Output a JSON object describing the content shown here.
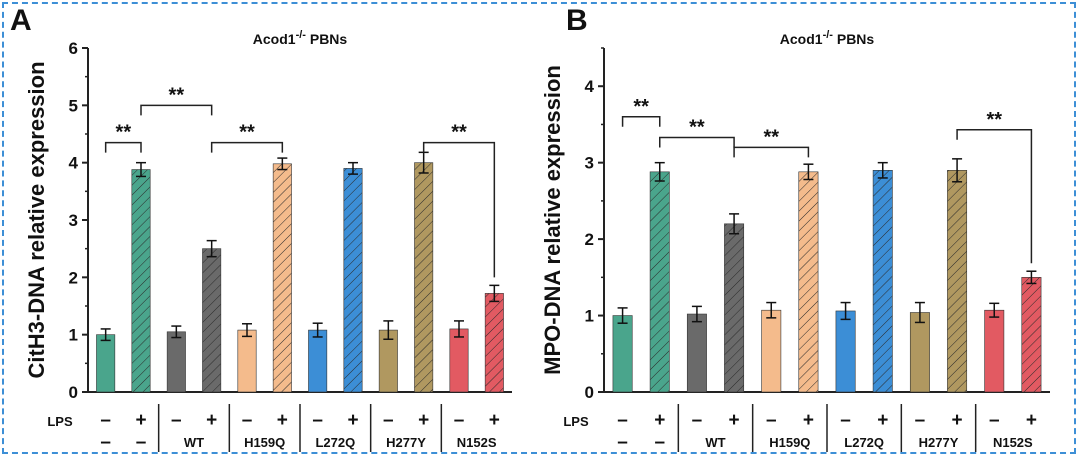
{
  "chart_data": [
    {
      "type": "bar",
      "panel": "A",
      "title_main": "Acod1",
      "title_sup": "-/-",
      "title_rest": " PBNs",
      "ylabel": "CitH3-DNA relative expression",
      "ylim": [
        0,
        6
      ],
      "yticks": [
        "0",
        "1",
        "2",
        "3",
        "4",
        "5",
        "6"
      ],
      "groups": [
        "–",
        "WT",
        "H159Q",
        "L272Q",
        "H277Y",
        "N152S"
      ],
      "lps_label": "LPS",
      "lps_signs": [
        "–",
        "+"
      ],
      "bars": [
        {
          "group": 0,
          "lps": "–",
          "value": 1.0,
          "err": 0.1,
          "color": "#4aa58c",
          "hatch": false
        },
        {
          "group": 0,
          "lps": "+",
          "value": 3.88,
          "err": 0.12,
          "color": "#4aa58c",
          "hatch": true
        },
        {
          "group": 1,
          "lps": "–",
          "value": 1.05,
          "err": 0.1,
          "color": "#6a6a6a",
          "hatch": false
        },
        {
          "group": 1,
          "lps": "+",
          "value": 2.5,
          "err": 0.14,
          "color": "#6a6a6a",
          "hatch": true
        },
        {
          "group": 2,
          "lps": "–",
          "value": 1.08,
          "err": 0.11,
          "color": "#f4bb8c",
          "hatch": false
        },
        {
          "group": 2,
          "lps": "+",
          "value": 3.98,
          "err": 0.1,
          "color": "#f4bb8c",
          "hatch": true
        },
        {
          "group": 3,
          "lps": "–",
          "value": 1.08,
          "err": 0.12,
          "color": "#3c8ed6",
          "hatch": false
        },
        {
          "group": 3,
          "lps": "+",
          "value": 3.9,
          "err": 0.1,
          "color": "#3c8ed6",
          "hatch": true
        },
        {
          "group": 4,
          "lps": "–",
          "value": 1.08,
          "err": 0.16,
          "color": "#b09860",
          "hatch": false
        },
        {
          "group": 4,
          "lps": "+",
          "value": 4.0,
          "err": 0.18,
          "color": "#b09860",
          "hatch": true
        },
        {
          "group": 5,
          "lps": "–",
          "value": 1.1,
          "err": 0.14,
          "color": "#e25a62",
          "hatch": false
        },
        {
          "group": 5,
          "lps": "+",
          "value": 1.72,
          "err": 0.14,
          "color": "#e25a62",
          "hatch": true
        }
      ],
      "significance": [
        {
          "from": 0,
          "to": 1,
          "y": 4.35,
          "label": "**"
        },
        {
          "from": 1,
          "to": 3,
          "y": 5.0,
          "label": "**"
        },
        {
          "from": 3,
          "to": 5,
          "y": 4.35,
          "label": "**"
        },
        {
          "from": 9,
          "to": 11,
          "y": 4.35,
          "label": "**"
        }
      ]
    },
    {
      "type": "bar",
      "panel": "B",
      "title_main": "Acod1",
      "title_sup": "-/-",
      "title_rest": " PBNs",
      "ylabel": "MPO-DNA relative expression",
      "ylim": [
        0,
        4.5
      ],
      "yticks": [
        "0",
        "1",
        "2",
        "3",
        "4"
      ],
      "groups": [
        "–",
        "WT",
        "H159Q",
        "L272Q",
        "H277Y",
        "N152S"
      ],
      "lps_label": "LPS",
      "lps_signs": [
        "–",
        "+"
      ],
      "bars": [
        {
          "group": 0,
          "lps": "–",
          "value": 1.0,
          "err": 0.1,
          "color": "#4aa58c",
          "hatch": false
        },
        {
          "group": 0,
          "lps": "+",
          "value": 2.88,
          "err": 0.12,
          "color": "#4aa58c",
          "hatch": true
        },
        {
          "group": 1,
          "lps": "–",
          "value": 1.02,
          "err": 0.1,
          "color": "#6a6a6a",
          "hatch": false
        },
        {
          "group": 1,
          "lps": "+",
          "value": 2.2,
          "err": 0.13,
          "color": "#6a6a6a",
          "hatch": true
        },
        {
          "group": 2,
          "lps": "–",
          "value": 1.07,
          "err": 0.1,
          "color": "#f4bb8c",
          "hatch": false
        },
        {
          "group": 2,
          "lps": "+",
          "value": 2.88,
          "err": 0.1,
          "color": "#f4bb8c",
          "hatch": true
        },
        {
          "group": 3,
          "lps": "–",
          "value": 1.06,
          "err": 0.11,
          "color": "#3c8ed6",
          "hatch": false
        },
        {
          "group": 3,
          "lps": "+",
          "value": 2.9,
          "err": 0.1,
          "color": "#3c8ed6",
          "hatch": true
        },
        {
          "group": 4,
          "lps": "–",
          "value": 1.04,
          "err": 0.13,
          "color": "#b09860",
          "hatch": false
        },
        {
          "group": 4,
          "lps": "+",
          "value": 2.9,
          "err": 0.15,
          "color": "#b09860",
          "hatch": true
        },
        {
          "group": 5,
          "lps": "–",
          "value": 1.07,
          "err": 0.09,
          "color": "#e25a62",
          "hatch": false
        },
        {
          "group": 5,
          "lps": "+",
          "value": 1.5,
          "err": 0.08,
          "color": "#e25a62",
          "hatch": true
        }
      ],
      "significance": [
        {
          "from": 0,
          "to": 1,
          "y": 3.6,
          "label": "**"
        },
        {
          "from": 1,
          "to": 3,
          "y": 3.33,
          "label": "**"
        },
        {
          "from": 3,
          "to": 5,
          "y": 3.2,
          "label": "**"
        },
        {
          "from": 9,
          "to": 11,
          "y": 3.43,
          "label": "**"
        }
      ]
    }
  ]
}
